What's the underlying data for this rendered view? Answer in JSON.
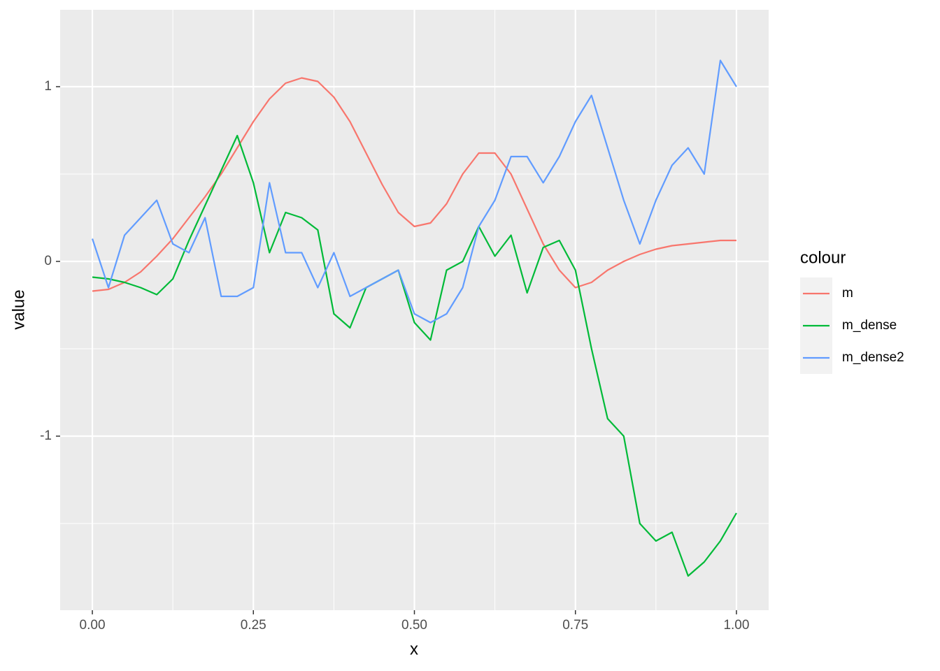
{
  "chart_data": {
    "type": "line",
    "x_label": "x",
    "y_label": "value",
    "legend_title": "colour",
    "x": [
      0,
      0.025,
      0.05,
      0.075,
      0.1,
      0.125,
      0.15,
      0.175,
      0.2,
      0.225,
      0.25,
      0.275,
      0.3,
      0.325,
      0.35,
      0.375,
      0.4,
      0.425,
      0.45,
      0.475,
      0.5,
      0.525,
      0.55,
      0.575,
      0.6,
      0.625,
      0.65,
      0.675,
      0.7,
      0.725,
      0.75,
      0.775,
      0.8,
      0.825,
      0.85,
      0.875,
      0.9,
      0.925,
      0.95,
      0.975,
      1.0
    ],
    "series": [
      {
        "name": "m",
        "color": "#f8766d",
        "values": [
          -0.17,
          -0.16,
          -0.12,
          -0.06,
          0.03,
          0.13,
          0.25,
          0.37,
          0.5,
          0.65,
          0.8,
          0.93,
          1.02,
          1.05,
          1.03,
          0.94,
          0.8,
          0.62,
          0.44,
          0.28,
          0.2,
          0.22,
          0.33,
          0.5,
          0.62,
          0.62,
          0.5,
          0.3,
          0.1,
          -0.05,
          -0.15,
          -0.12,
          -0.05,
          0.0,
          0.04,
          0.07,
          0.09,
          0.1,
          0.11,
          0.12,
          0.12
        ]
      },
      {
        "name": "m_dense",
        "color": "#00ba38",
        "values": [
          -0.09,
          -0.1,
          -0.12,
          -0.15,
          -0.19,
          -0.1,
          0.12,
          0.32,
          0.52,
          0.72,
          0.45,
          0.05,
          0.28,
          0.25,
          0.18,
          -0.3,
          -0.38,
          -0.15,
          -0.1,
          -0.05,
          -0.35,
          -0.45,
          -0.05,
          0.0,
          0.2,
          0.03,
          0.15,
          -0.18,
          0.08,
          0.12,
          -0.05,
          -0.5,
          -0.9,
          -1.0,
          -1.5,
          -1.6,
          -1.55,
          -1.8,
          -1.72,
          -1.6,
          -1.44
        ]
      },
      {
        "name": "m_dense2",
        "color": "#619cff",
        "values": [
          0.13,
          -0.15,
          0.15,
          0.25,
          0.35,
          0.1,
          0.05,
          0.25,
          -0.2,
          -0.2,
          -0.15,
          0.45,
          0.05,
          0.05,
          -0.15,
          0.05,
          -0.2,
          -0.15,
          -0.1,
          -0.05,
          -0.3,
          -0.35,
          -0.3,
          -0.15,
          0.2,
          0.35,
          0.6,
          0.6,
          0.45,
          0.6,
          0.8,
          0.95,
          0.65,
          0.35,
          0.1,
          0.35,
          0.55,
          0.65,
          0.5,
          1.15,
          1.0
        ]
      }
    ],
    "xlim": [
      -0.05,
      1.05
    ],
    "ylim": [
      -1.996,
      1.44
    ],
    "xticks": [
      {
        "value": 0,
        "label": "0.00"
      },
      {
        "value": 0.25,
        "label": "0.25"
      },
      {
        "value": 0.5,
        "label": "0.50"
      },
      {
        "value": 0.75,
        "label": "0.75"
      },
      {
        "value": 1,
        "label": "1.00"
      }
    ],
    "yticks": [
      -1,
      0,
      1
    ],
    "x_minor_ticks": [
      0.125,
      0.375,
      0.625,
      0.875
    ],
    "y_minor_ticks": [
      -1.5,
      -0.5,
      0.5
    ],
    "grid": true,
    "legend": "right"
  }
}
